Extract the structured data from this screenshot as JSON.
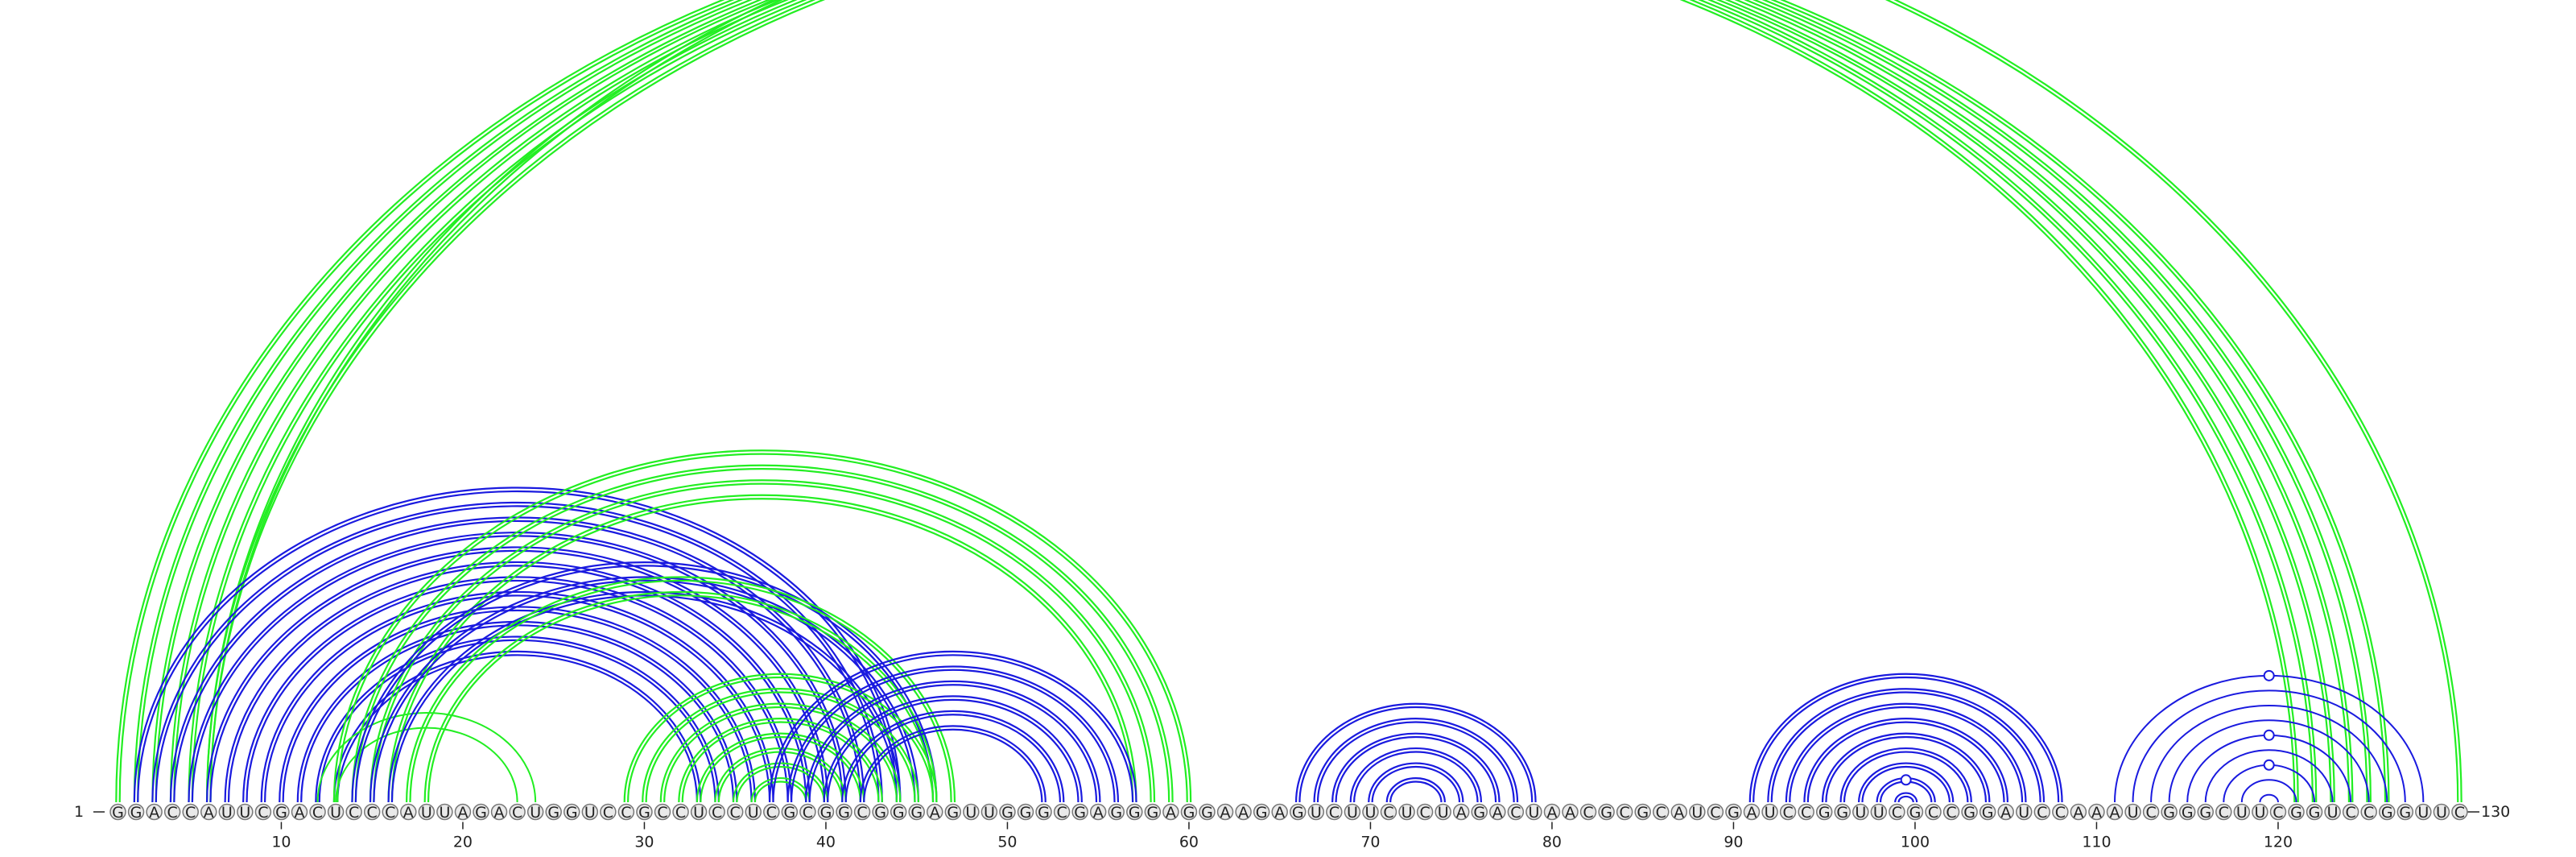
{
  "sequence": "GGACCAUUCGACUCCCAUUAGACUGGUCCGCCUCCUCGCGGCGGGAGUUGGGCGAGGGAGGAAGAGUCUUCUCUAGACUAACGCGCAUCGAUCCGGUUCGCCGGAUCCAAAUCGGGCUUCGGUCCGGUUC",
  "length": 130,
  "start_label": "1",
  "end_label": "130",
  "tick_labels": [
    "10",
    "20",
    "30",
    "40",
    "50",
    "60",
    "70",
    "80",
    "90",
    "100",
    "110",
    "120"
  ],
  "colors": {
    "green": "#22ee22",
    "blue": "#1a1adf",
    "circle_fill": "#e9e9e9",
    "circle_stroke": "#777777"
  },
  "arc_groups": [
    {
      "color": "green",
      "double": true,
      "pairs": [
        [
          1,
          121
        ],
        [
          2,
          122
        ],
        [
          3,
          123
        ],
        [
          4,
          124
        ],
        [
          5,
          125
        ],
        [
          6,
          126
        ]
      ]
    },
    {
      "color": "green",
      "double": true,
      "pairs": [
        [
          6,
          130
        ]
      ]
    },
    {
      "color": "blue",
      "double": true,
      "pairs": [
        [
          2,
          44
        ],
        [
          3,
          43
        ],
        [
          4,
          42
        ],
        [
          5,
          41
        ],
        [
          6,
          40
        ],
        [
          7,
          39
        ],
        [
          8,
          38
        ],
        [
          9,
          37
        ],
        [
          10,
          36
        ],
        [
          11,
          35
        ],
        [
          12,
          34
        ],
        [
          13,
          33
        ]
      ]
    },
    {
      "color": "green",
      "double": false,
      "pairs": [
        [
          12,
          24
        ],
        [
          13,
          23
        ]
      ]
    },
    {
      "color": "green",
      "double": true,
      "pairs": [
        [
          13,
          60
        ],
        [
          14,
          59
        ],
        [
          15,
          58
        ],
        [
          16,
          57
        ]
      ]
    },
    {
      "color": "blue",
      "double": true,
      "pairs": [
        [
          14,
          46
        ],
        [
          15,
          45
        ],
        [
          16,
          44
        ]
      ]
    },
    {
      "color": "green",
      "double": true,
      "pairs": [
        [
          17,
          47
        ],
        [
          18,
          46
        ]
      ]
    },
    {
      "color": "green",
      "double": true,
      "pairs": [
        [
          29,
          46
        ],
        [
          30,
          45
        ],
        [
          31,
          44
        ],
        [
          32,
          43
        ],
        [
          33,
          42
        ],
        [
          34,
          41
        ],
        [
          35,
          40
        ],
        [
          36,
          39
        ]
      ]
    },
    {
      "color": "blue",
      "double": true,
      "pairs": [
        [
          37,
          57
        ],
        [
          38,
          56
        ],
        [
          39,
          55
        ],
        [
          40,
          54
        ],
        [
          41,
          53
        ],
        [
          42,
          52
        ]
      ]
    },
    {
      "color": "blue",
      "double": true,
      "pairs": [
        [
          66,
          79
        ],
        [
          67,
          78
        ],
        [
          68,
          77
        ],
        [
          69,
          76
        ],
        [
          70,
          75
        ],
        [
          71,
          74
        ]
      ]
    },
    {
      "color": "blue",
      "double": true,
      "pairs": [
        [
          91,
          108
        ],
        [
          92,
          107
        ],
        [
          93,
          106
        ],
        [
          94,
          105
        ],
        [
          95,
          104
        ],
        [
          96,
          103
        ],
        [
          97,
          102
        ],
        [
          98,
          101
        ],
        [
          99,
          100
        ]
      ]
    },
    {
      "color": "blue",
      "double": false,
      "pairs": [
        [
          111,
          128
        ],
        [
          112,
          127
        ],
        [
          113,
          126
        ],
        [
          114,
          125
        ],
        [
          115,
          124
        ],
        [
          116,
          123
        ],
        [
          117,
          122
        ],
        [
          118,
          121
        ],
        [
          119,
          120
        ]
      ]
    }
  ],
  "markers": [
    {
      "color": "green",
      "i": 6,
      "j": 130
    },
    {
      "color": "blue",
      "i": 111,
      "j": 128
    },
    {
      "color": "blue",
      "i": 115,
      "j": 124
    },
    {
      "color": "blue",
      "i": 117,
      "j": 122
    },
    {
      "color": "blue",
      "i": 98,
      "j": 101
    }
  ]
}
